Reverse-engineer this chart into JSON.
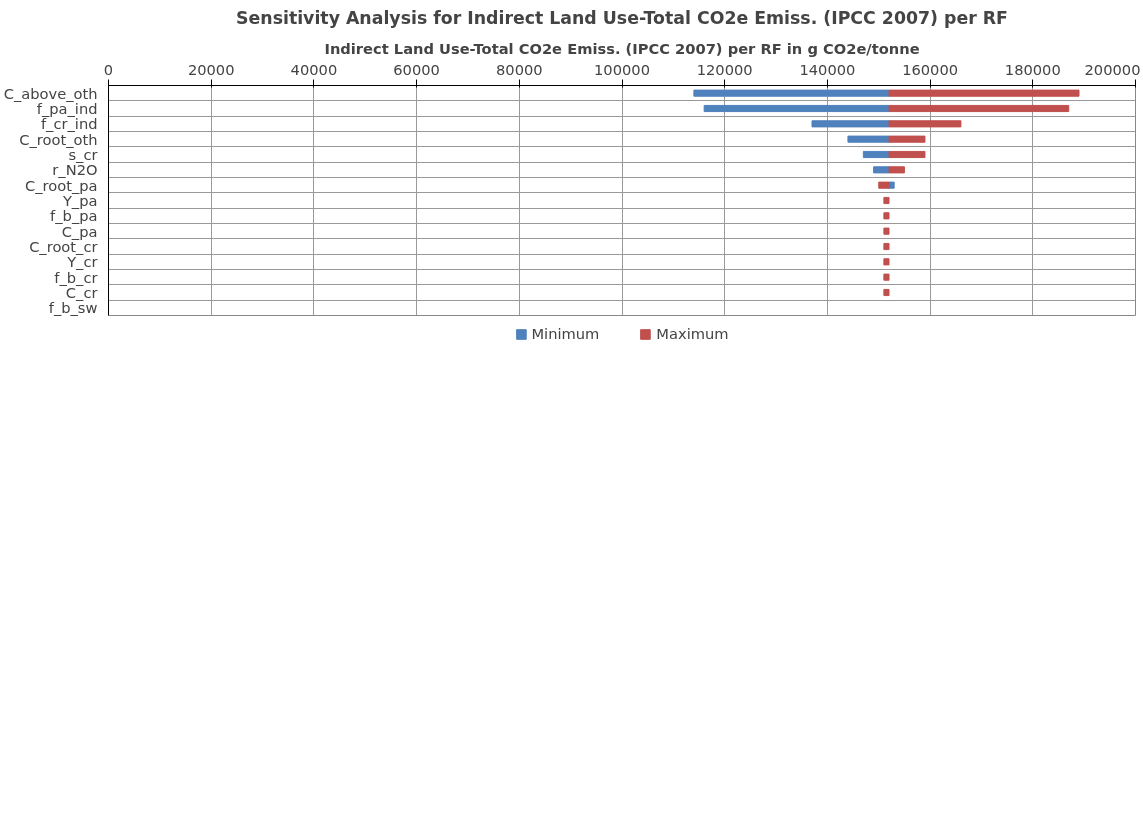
{
  "chart_data": {
    "type": "bar",
    "orientation": "horizontal",
    "title": "Sensitivity Analysis for Indirect Land Use-Total CO2e Emiss. (IPCC 2007) per RF",
    "subtitle": "Indirect Land Use-Total CO2e Emiss. (IPCC 2007) per RF in g CO2e/tonne",
    "categories": [
      "C_above_oth",
      "f_pa_ind",
      "f_cr_ind",
      "C_root_oth",
      "s_cr",
      "r_N2O",
      "C_root_pa",
      "Y_pa",
      "f_b_pa",
      "C_pa",
      "C_root_cr",
      "Y_cr",
      "f_b_cr",
      "C_cr",
      "f_b_sw"
    ],
    "series": [
      {
        "name": "Minimum",
        "color": "#4f81bd",
        "base": [
          152000,
          152000,
          152000,
          152000,
          152000,
          152000,
          152000,
          null,
          null,
          null,
          null,
          null,
          null,
          null,
          null
        ],
        "values": [
          -38000,
          -36000,
          -15000,
          -8000,
          -5000,
          -3000,
          1000,
          null,
          null,
          null,
          null,
          null,
          null,
          null,
          null
        ]
      },
      {
        "name": "Maximum",
        "color": "#c0504d",
        "base": [
          152000,
          152000,
          152000,
          152000,
          152000,
          152000,
          152000,
          152000,
          152000,
          152000,
          152000,
          152000,
          152000,
          152000,
          null
        ],
        "values": [
          37000,
          35000,
          14000,
          7000,
          7000,
          3000,
          -2000,
          -1000,
          -1000,
          -1000,
          -1000,
          -1000,
          -1000,
          -1000,
          null
        ]
      }
    ],
    "xlim": [
      0,
      200000
    ],
    "xticks": [
      0,
      20000,
      40000,
      60000,
      80000,
      100000,
      120000,
      140000,
      160000,
      180000,
      200000
    ],
    "grid": true,
    "legend": "bottom"
  }
}
